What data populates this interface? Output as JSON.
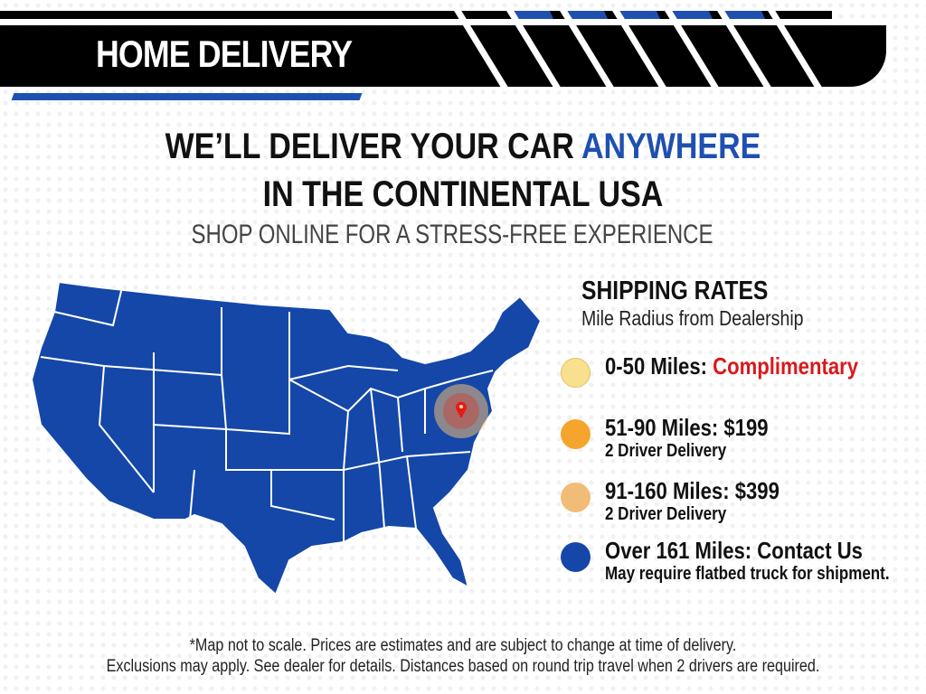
{
  "header": {
    "title": "HOME DELIVERY"
  },
  "headline": {
    "line1_prefix": "WE’LL DELIVER YOUR CAR ",
    "line1_highlight": "ANYWHERE",
    "line2": "IN THE CONTINENTAL USA",
    "subtitle": "SHOP ONLINE FOR A STRESS-FREE EXPERIENCE"
  },
  "rates": {
    "title": "SHIPPING RATES",
    "subtitle": "Mile Radius from Dealership",
    "items": [
      {
        "label": "0-50 Miles: ",
        "value": "Complimentary",
        "note": "",
        "color": "#f9e08e"
      },
      {
        "label": "51-90 Miles: $199",
        "value": "",
        "note": "2 Driver Delivery",
        "color": "#f5a52c"
      },
      {
        "label": "91-160 Miles: $399",
        "value": "",
        "note": "2 Driver Delivery",
        "color": "#f1bb78"
      },
      {
        "label": "Over 161 Miles: Contact Us",
        "value": "",
        "note": "May require flatbed truck for shipment.",
        "color": "#1447a8"
      }
    ]
  },
  "colors": {
    "brand_blue": "#1f50b0",
    "map_blue": "#1447a8",
    "accent_red": "#d8191c"
  },
  "footer": {
    "line1": "*Map not to scale. Prices are estimates and are subject to change at time of delivery.",
    "line2": "Exclusions may apply. See dealer for details. Distances based on round trip travel when 2 drivers are required."
  }
}
